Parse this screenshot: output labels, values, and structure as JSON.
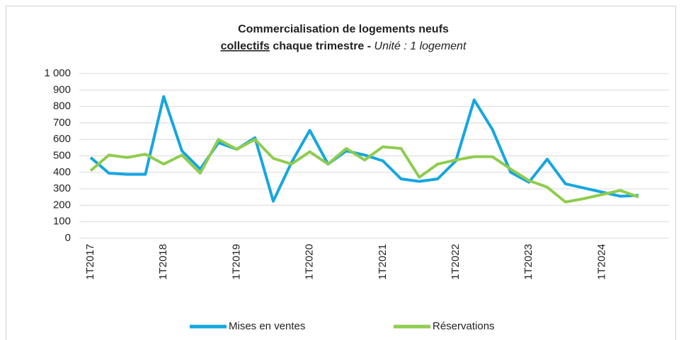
{
  "chart_data": {
    "type": "line",
    "title_line1": "Commercialisation  de logements neufs",
    "title_underlined": "collectifs",
    "title_bold": " chaque trimestre - ",
    "title_italic": "Unité : 1 logement",
    "categories": [
      "1T2017",
      null,
      null,
      null,
      "1T2018",
      null,
      null,
      null,
      "1T2019",
      null,
      null,
      null,
      "1T2020",
      null,
      null,
      null,
      "1T2021",
      null,
      null,
      null,
      "1T2022",
      null,
      null,
      null,
      "1T2023",
      null,
      null,
      null,
      "1T2024",
      null,
      null
    ],
    "series": [
      {
        "name": "Mises en ventes",
        "color": "#15a6e0",
        "values": [
          490,
          395,
          388,
          388,
          860,
          530,
          420,
          580,
          540,
          610,
          225,
          460,
          655,
          450,
          530,
          505,
          470,
          360,
          345,
          360,
          470,
          840,
          660,
          400,
          340,
          480,
          330,
          305,
          280,
          255,
          260
        ]
      },
      {
        "name": "Réservations",
        "color": "#8fcc4e",
        "values": [
          410,
          505,
          490,
          510,
          450,
          505,
          395,
          600,
          540,
          600,
          485,
          450,
          525,
          450,
          545,
          475,
          555,
          545,
          370,
          450,
          475,
          495,
          495,
          420,
          350,
          310,
          220,
          240,
          265,
          290,
          250
        ]
      }
    ],
    "ylim": [
      0,
      1000
    ],
    "yticks": [
      0,
      100,
      200,
      300,
      400,
      500,
      600,
      700,
      800,
      900,
      {
        "value": 1000,
        "label": "1 000"
      }
    ],
    "grid": true
  }
}
